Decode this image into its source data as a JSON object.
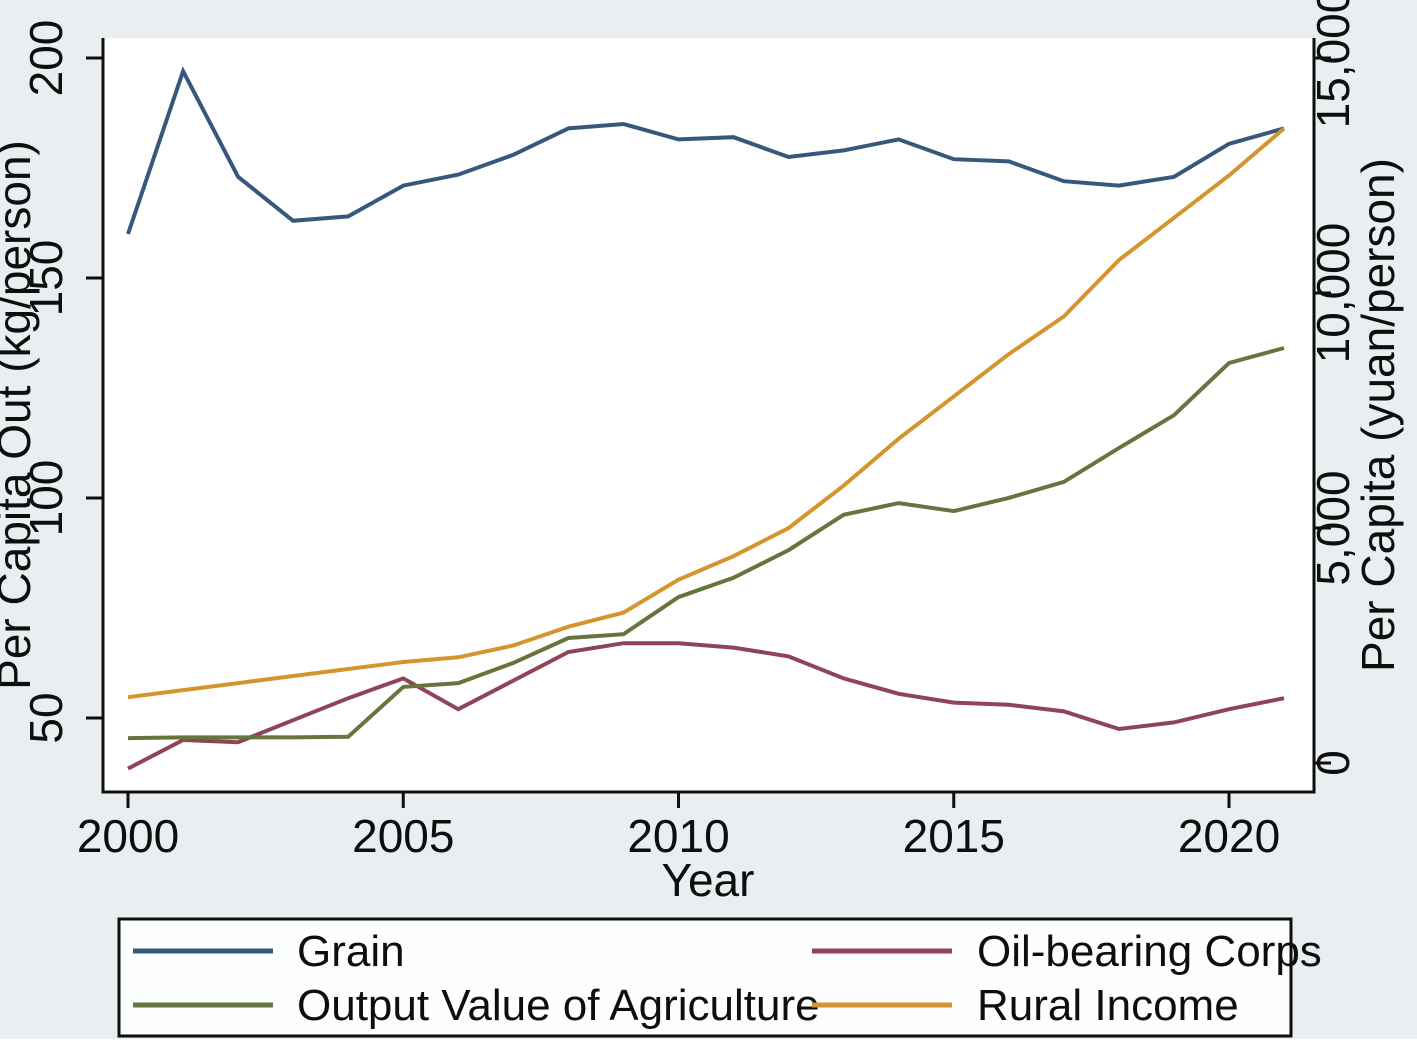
{
  "figure": {
    "background": "#e9eff1",
    "plot_background": "#ffffff",
    "axis_color": "#0e0e0e",
    "bottom_strip_color": "#ffffff"
  },
  "chart_data": {
    "type": "line",
    "title": "",
    "xlabel": "Year",
    "x": [
      2000,
      2001,
      2002,
      2003,
      2004,
      2005,
      2006,
      2007,
      2008,
      2009,
      2010,
      2011,
      2012,
      2013,
      2014,
      2015,
      2016,
      2017,
      2018,
      2019,
      2020,
      2021
    ],
    "x_ticks": [
      2000,
      2005,
      2010,
      2015,
      2020
    ],
    "left_axis": {
      "label": "Per Capita Out (kg/person)",
      "ticks": [
        50,
        100,
        150,
        200
      ],
      "tick_labels": [
        "50",
        "100",
        "150",
        "200"
      ],
      "range": [
        34,
        204.5
      ]
    },
    "right_axis": {
      "label": "Per Capita (yuan/person)",
      "ticks": [
        0,
        5000,
        10000,
        15000
      ],
      "tick_labels": [
        "0",
        "5,000",
        "10,000",
        "15,000"
      ],
      "range": [
        -620,
        15420
      ]
    },
    "grid": false,
    "legend_position": "bottom",
    "series": [
      {
        "name": "Grain",
        "axis": "left",
        "color": "#37587d",
        "values": [
          160,
          197,
          173,
          163,
          164,
          171,
          173.5,
          178,
          184,
          185,
          181.5,
          182,
          177.5,
          179,
          181.5,
          177,
          176.5,
          172,
          171,
          173,
          180.5,
          184
        ]
      },
      {
        "name": "Oil-bearing Corps",
        "axis": "left",
        "color": "#8f4458",
        "values": [
          38.5,
          45,
          44.5,
          49.5,
          54.5,
          59,
          52,
          58.5,
          65,
          67,
          67,
          66,
          64,
          59,
          55.5,
          53.5,
          53,
          51.5,
          47.5,
          49,
          52,
          54.5
        ]
      },
      {
        "name": "Output Value of Agriculture",
        "axis": "right",
        "color": "#65753e",
        "values": [
          530,
          545,
          545,
          545,
          560,
          1620,
          1700,
          2130,
          2660,
          2740,
          3530,
          3940,
          4530,
          5280,
          5530,
          5360,
          5640,
          5980,
          6700,
          7400,
          8510,
          8830
        ]
      },
      {
        "name": "Rural Income",
        "axis": "right",
        "color": "#d5952e",
        "values": [
          1400,
          1550,
          1700,
          1850,
          2000,
          2150,
          2250,
          2500,
          2900,
          3200,
          3900,
          4400,
          5000,
          5900,
          6900,
          7800,
          8700,
          9500,
          10700,
          11600,
          12500,
          13500
        ]
      }
    ],
    "legend_rows": [
      [
        "Grain",
        "Oil-bearing Corps"
      ],
      [
        "Output Value of Agriculture",
        "Rural Income"
      ]
    ]
  }
}
